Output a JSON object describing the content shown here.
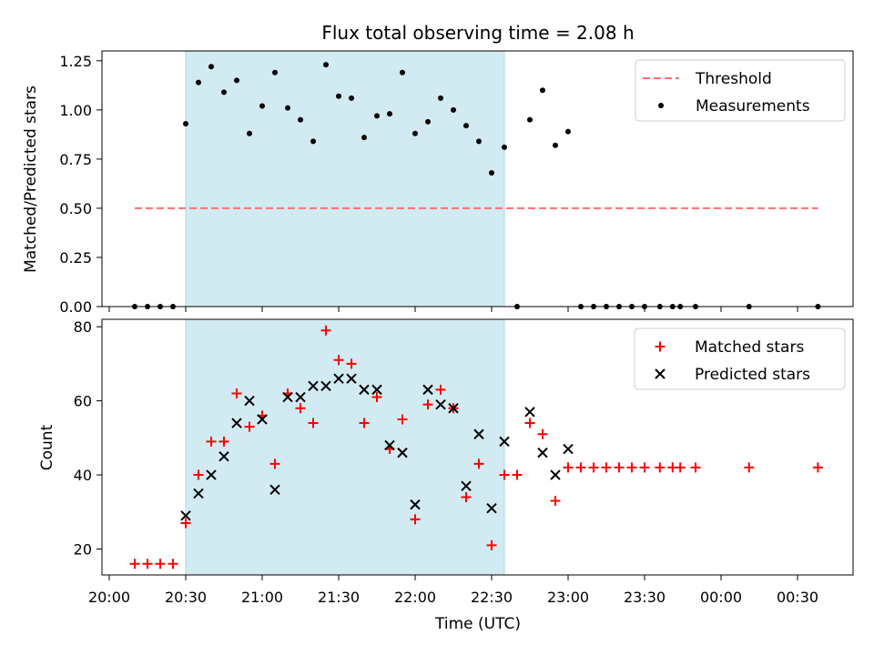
{
  "title": "Flux total observing time = 2.08 h",
  "colors": {
    "threshold": "#ff6f6f",
    "measurements": "#000000",
    "matched": "#ff0000",
    "predicted": "#000000",
    "shade": "#add8e6"
  },
  "chart_data": [
    {
      "type": "scatter",
      "ylabel": "Matched/Predicted stars",
      "ylim": [
        0,
        1.3
      ],
      "yticks": [
        0.0,
        0.25,
        0.5,
        0.75,
        1.0,
        1.25
      ],
      "ytick_labels": [
        "0.00",
        "0.25",
        "0.50",
        "0.75",
        "1.00",
        "1.25"
      ],
      "shaded_interval": [
        "20:30",
        "22:35"
      ],
      "legend": {
        "position": "top-right",
        "entries": [
          "Threshold",
          "Measurements"
        ]
      },
      "threshold": {
        "name": "Threshold",
        "y": 0.5,
        "x_range": [
          "20:10",
          "00:38"
        ]
      },
      "series": [
        {
          "name": "Measurements",
          "points": [
            [
              "20:10",
              0
            ],
            [
              "20:15",
              0
            ],
            [
              "20:20",
              0
            ],
            [
              "20:25",
              0
            ],
            [
              "20:30",
              0.93
            ],
            [
              "20:35",
              1.14
            ],
            [
              "20:40",
              1.22
            ],
            [
              "20:45",
              1.09
            ],
            [
              "20:50",
              1.15
            ],
            [
              "20:55",
              0.88
            ],
            [
              "21:00",
              1.02
            ],
            [
              "21:05",
              1.19
            ],
            [
              "21:10",
              1.01
            ],
            [
              "21:15",
              0.95
            ],
            [
              "21:20",
              0.84
            ],
            [
              "21:25",
              1.23
            ],
            [
              "21:30",
              1.07
            ],
            [
              "21:35",
              1.06
            ],
            [
              "21:40",
              0.86
            ],
            [
              "21:45",
              0.97
            ],
            [
              "21:50",
              0.98
            ],
            [
              "21:55",
              1.19
            ],
            [
              "22:00",
              0.88
            ],
            [
              "22:05",
              0.94
            ],
            [
              "22:10",
              1.06
            ],
            [
              "22:15",
              1.0
            ],
            [
              "22:20",
              0.92
            ],
            [
              "22:25",
              0.84
            ],
            [
              "22:30",
              0.68
            ],
            [
              "22:35",
              0.81
            ],
            [
              "22:40",
              0
            ],
            [
              "22:45",
              0.95
            ],
            [
              "22:50",
              1.1
            ],
            [
              "22:55",
              0.82
            ],
            [
              "23:00",
              0.89
            ],
            [
              "23:05",
              0
            ],
            [
              "23:10",
              0
            ],
            [
              "23:15",
              0
            ],
            [
              "23:20",
              0
            ],
            [
              "23:25",
              0
            ],
            [
              "23:30",
              0
            ],
            [
              "23:36",
              0
            ],
            [
              "23:41",
              0
            ],
            [
              "23:44",
              0
            ],
            [
              "23:50",
              0
            ],
            [
              "00:11",
              0
            ],
            [
              "00:38",
              0
            ]
          ]
        }
      ]
    },
    {
      "type": "scatter",
      "ylabel": "Count",
      "xlabel": "Time (UTC)",
      "ylim": [
        13,
        82
      ],
      "yticks": [
        20,
        40,
        60,
        80
      ],
      "ytick_labels": [
        "20",
        "40",
        "60",
        "80"
      ],
      "xticks": [
        "20:00",
        "20:30",
        "21:00",
        "21:30",
        "22:00",
        "22:30",
        "23:00",
        "23:30",
        "00:00",
        "00:30"
      ],
      "shaded_interval": [
        "20:30",
        "22:35"
      ],
      "legend": {
        "position": "top-right",
        "entries": [
          "Matched stars",
          "Predicted stars"
        ]
      },
      "series": [
        {
          "name": "Matched stars",
          "points": [
            [
              "20:10",
              16
            ],
            [
              "20:15",
              16
            ],
            [
              "20:20",
              16
            ],
            [
              "20:25",
              16
            ],
            [
              "20:30",
              27
            ],
            [
              "20:35",
              40
            ],
            [
              "20:40",
              49
            ],
            [
              "20:45",
              49
            ],
            [
              "20:50",
              62
            ],
            [
              "20:55",
              53
            ],
            [
              "21:00",
              56
            ],
            [
              "21:05",
              43
            ],
            [
              "21:10",
              62
            ],
            [
              "21:15",
              58
            ],
            [
              "21:20",
              54
            ],
            [
              "21:25",
              79
            ],
            [
              "21:30",
              71
            ],
            [
              "21:35",
              70
            ],
            [
              "21:40",
              54
            ],
            [
              "21:45",
              61
            ],
            [
              "21:50",
              47
            ],
            [
              "21:55",
              55
            ],
            [
              "22:00",
              28
            ],
            [
              "22:05",
              59
            ],
            [
              "22:10",
              63
            ],
            [
              "22:15",
              58
            ],
            [
              "22:20",
              34
            ],
            [
              "22:25",
              43
            ],
            [
              "22:30",
              21
            ],
            [
              "22:35",
              40
            ],
            [
              "22:40",
              40
            ],
            [
              "22:45",
              54
            ],
            [
              "22:50",
              51
            ],
            [
              "22:55",
              33
            ],
            [
              "23:00",
              42
            ],
            [
              "23:05",
              42
            ],
            [
              "23:10",
              42
            ],
            [
              "23:15",
              42
            ],
            [
              "23:20",
              42
            ],
            [
              "23:25",
              42
            ],
            [
              "23:30",
              42
            ],
            [
              "23:36",
              42
            ],
            [
              "23:41",
              42
            ],
            [
              "23:44",
              42
            ],
            [
              "23:50",
              42
            ],
            [
              "00:11",
              42
            ],
            [
              "00:38",
              42
            ]
          ]
        },
        {
          "name": "Predicted stars",
          "points": [
            [
              "20:30",
              29
            ],
            [
              "20:35",
              35
            ],
            [
              "20:40",
              40
            ],
            [
              "20:45",
              45
            ],
            [
              "20:50",
              54
            ],
            [
              "20:55",
              60
            ],
            [
              "21:00",
              55
            ],
            [
              "21:05",
              36
            ],
            [
              "21:10",
              61
            ],
            [
              "21:15",
              61
            ],
            [
              "21:20",
              64
            ],
            [
              "21:25",
              64
            ],
            [
              "21:30",
              66
            ],
            [
              "21:35",
              66
            ],
            [
              "21:40",
              63
            ],
            [
              "21:45",
              63
            ],
            [
              "21:50",
              48
            ],
            [
              "21:55",
              46
            ],
            [
              "22:00",
              32
            ],
            [
              "22:05",
              63
            ],
            [
              "22:10",
              59
            ],
            [
              "22:15",
              58
            ],
            [
              "22:20",
              37
            ],
            [
              "22:25",
              51
            ],
            [
              "22:30",
              31
            ],
            [
              "22:35",
              49
            ],
            [
              "22:45",
              57
            ],
            [
              "22:50",
              46
            ],
            [
              "22:55",
              40
            ],
            [
              "23:00",
              47
            ]
          ]
        }
      ]
    }
  ]
}
